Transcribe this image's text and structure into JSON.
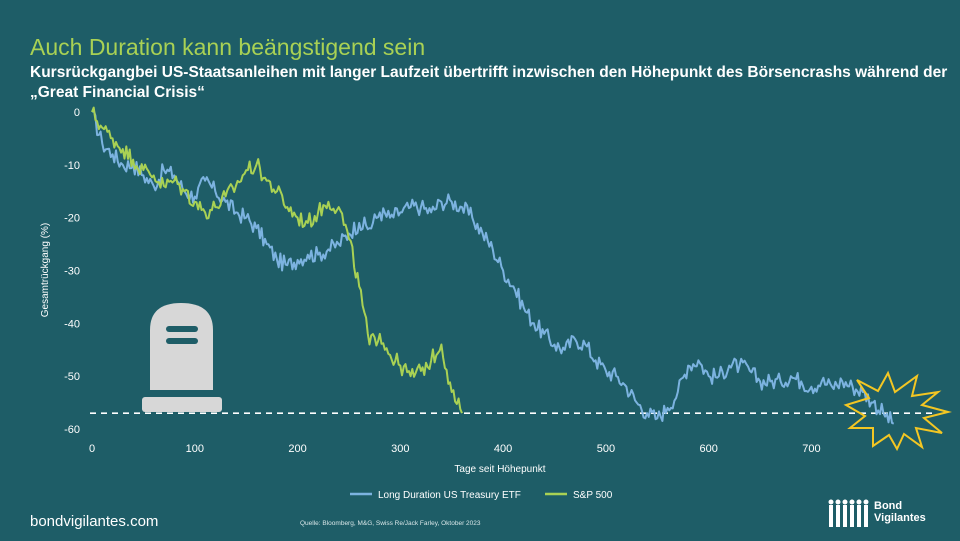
{
  "title": "Auch Duration kann beängstigend sein",
  "subtitle": "Kursrückgangbei US-Staatsanleihen mit langer Laufzeit übertrifft inzwischen den Höhepunkt des Börsencrashs während der „Great Financial Crisis“",
  "footer": {
    "site": "bondvigilantes.com",
    "source": "Quelle: Bloomberg, M&G, Swiss Re/Jack Farley, Oktober 2023",
    "logo_line1": "Bond",
    "logo_line2": "Vigilantes"
  },
  "colors": {
    "background": "#1e5d67",
    "treasury": "#7cb3e0",
    "sp500": "#a9d154",
    "title": "#a9d154"
  },
  "icons": [
    "tombstone-icon",
    "explosion-burst-icon",
    "people-logo-icon"
  ],
  "chart_data": {
    "type": "line",
    "title": "",
    "xlabel": "Tage seit Höhepunkt",
    "ylabel": "Gesamtrückgang (%)",
    "xlim": [
      0,
      780
    ],
    "ylim": [
      -60,
      0
    ],
    "xticks": [
      0,
      100,
      200,
      300,
      400,
      500,
      600,
      700
    ],
    "yticks": [
      0,
      -10,
      -20,
      -30,
      -40,
      -50,
      -60
    ],
    "reference_line": {
      "y": -57,
      "style": "dashed"
    },
    "legend_position": "bottom",
    "grid": false,
    "series": [
      {
        "name": "Long Duration US Treasury ETF",
        "color": "#7cb3e0",
        "x": [
          0,
          10,
          20,
          30,
          40,
          50,
          60,
          70,
          80,
          90,
          100,
          110,
          120,
          130,
          140,
          150,
          160,
          170,
          180,
          190,
          200,
          210,
          220,
          230,
          240,
          250,
          260,
          270,
          280,
          290,
          300,
          310,
          320,
          330,
          340,
          350,
          360,
          370,
          380,
          390,
          400,
          410,
          420,
          430,
          440,
          450,
          460,
          470,
          480,
          490,
          500,
          510,
          520,
          530,
          540,
          550,
          560,
          570,
          580,
          590,
          600,
          610,
          620,
          630,
          640,
          650,
          660,
          670,
          680,
          690,
          700,
          710,
          720,
          730,
          740,
          750,
          760,
          770,
          780
        ],
        "y": [
          0,
          -6,
          -8,
          -10,
          -10,
          -12,
          -14,
          -11,
          -12,
          -15,
          -16,
          -13,
          -15,
          -17,
          -19,
          -20,
          -22,
          -25,
          -28,
          -29,
          -28,
          -27,
          -27,
          -26,
          -25,
          -23,
          -21,
          -22,
          -19,
          -20,
          -19,
          -18,
          -18,
          -19,
          -17,
          -17,
          -18,
          -20,
          -23,
          -26,
          -30,
          -33,
          -37,
          -40,
          -42,
          -44,
          -45,
          -43,
          -44,
          -47,
          -49,
          -50,
          -52,
          -55,
          -57,
          -58,
          -56,
          -53,
          -48,
          -47,
          -50,
          -50,
          -48,
          -48,
          -49,
          -51,
          -51,
          -51,
          -50,
          -51,
          -52,
          -51,
          -52,
          -51,
          -52,
          -53,
          -55,
          -57,
          -59
        ]
      },
      {
        "name": "S&P 500",
        "color": "#a9d154",
        "x": [
          0,
          10,
          20,
          30,
          40,
          50,
          60,
          70,
          80,
          90,
          100,
          110,
          120,
          130,
          140,
          150,
          160,
          170,
          180,
          190,
          200,
          210,
          220,
          230,
          240,
          250,
          260,
          270,
          280,
          290,
          300,
          310,
          320,
          330,
          340,
          350,
          360
        ],
        "y": [
          0,
          -3,
          -5,
          -7,
          -9,
          -11,
          -12,
          -14,
          -13,
          -15,
          -17,
          -19,
          -18,
          -16,
          -14,
          -11,
          -10,
          -13,
          -15,
          -18,
          -20,
          -21,
          -19,
          -17,
          -18,
          -24,
          -33,
          -44,
          -42,
          -46,
          -48,
          -50,
          -49,
          -47,
          -44,
          -53,
          -57
        ]
      }
    ]
  }
}
